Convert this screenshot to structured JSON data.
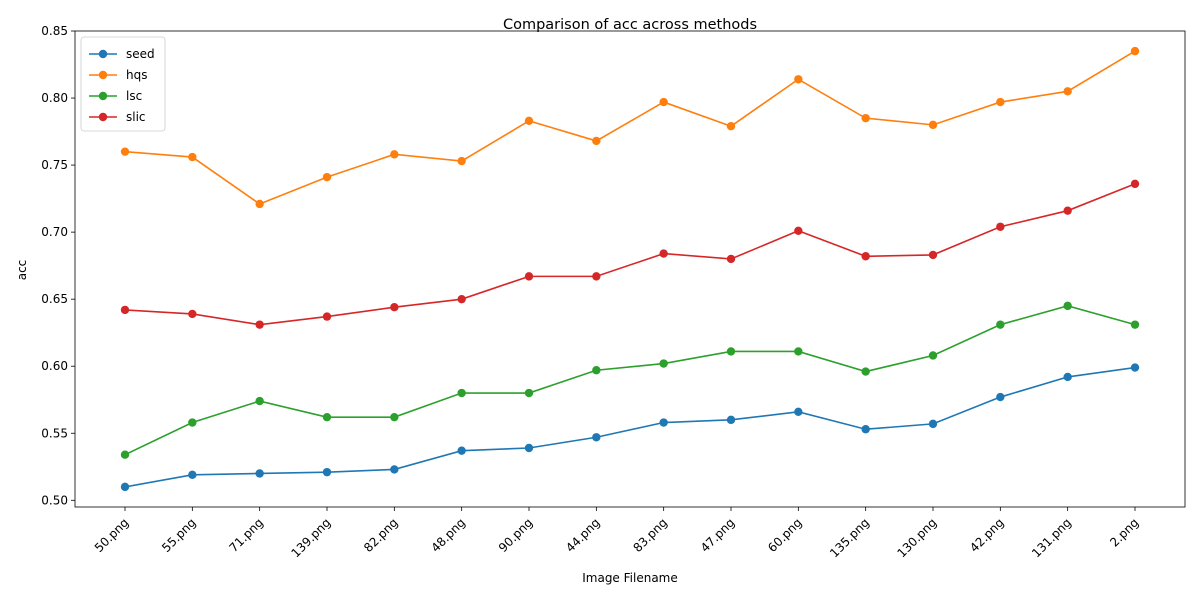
{
  "chart_data": {
    "type": "line",
    "title": "Comparison of acc across methods",
    "xlabel": "Image Filename",
    "ylabel": "acc",
    "categories": [
      "50.png",
      "55.png",
      "71.png",
      "139.png",
      "82.png",
      "48.png",
      "90.png",
      "44.png",
      "83.png",
      "47.png",
      "60.png",
      "135.png",
      "130.png",
      "42.png",
      "131.png",
      "2.png"
    ],
    "ylim": [
      0.495,
      0.85
    ],
    "yticks": [
      0.5,
      0.55,
      0.6,
      0.65,
      0.7,
      0.75,
      0.8,
      0.85
    ],
    "ytick_labels": [
      "0.50",
      "0.55",
      "0.60",
      "0.65",
      "0.70",
      "0.75",
      "0.80",
      "0.85"
    ],
    "grid": false,
    "legend_position": "top-left",
    "series": [
      {
        "name": "seed",
        "color": "#1f77b4",
        "values": [
          0.51,
          0.519,
          0.52,
          0.521,
          0.523,
          0.537,
          0.539,
          0.547,
          0.558,
          0.56,
          0.566,
          0.553,
          0.557,
          0.577,
          0.592,
          0.599
        ]
      },
      {
        "name": "hqs",
        "color": "#ff7f0e",
        "values": [
          0.76,
          0.756,
          0.721,
          0.741,
          0.758,
          0.753,
          0.783,
          0.768,
          0.797,
          0.779,
          0.814,
          0.785,
          0.78,
          0.797,
          0.805,
          0.835
        ]
      },
      {
        "name": "lsc",
        "color": "#2ca02c",
        "values": [
          0.534,
          0.558,
          0.574,
          0.562,
          0.562,
          0.58,
          0.58,
          0.597,
          0.602,
          0.611,
          0.611,
          0.596,
          0.608,
          0.631,
          0.645,
          0.631
        ]
      },
      {
        "name": "slic",
        "color": "#d62728",
        "values": [
          0.642,
          0.639,
          0.631,
          0.637,
          0.644,
          0.65,
          0.667,
          0.667,
          0.684,
          0.68,
          0.701,
          0.682,
          0.683,
          0.704,
          0.716,
          0.736
        ]
      }
    ]
  }
}
